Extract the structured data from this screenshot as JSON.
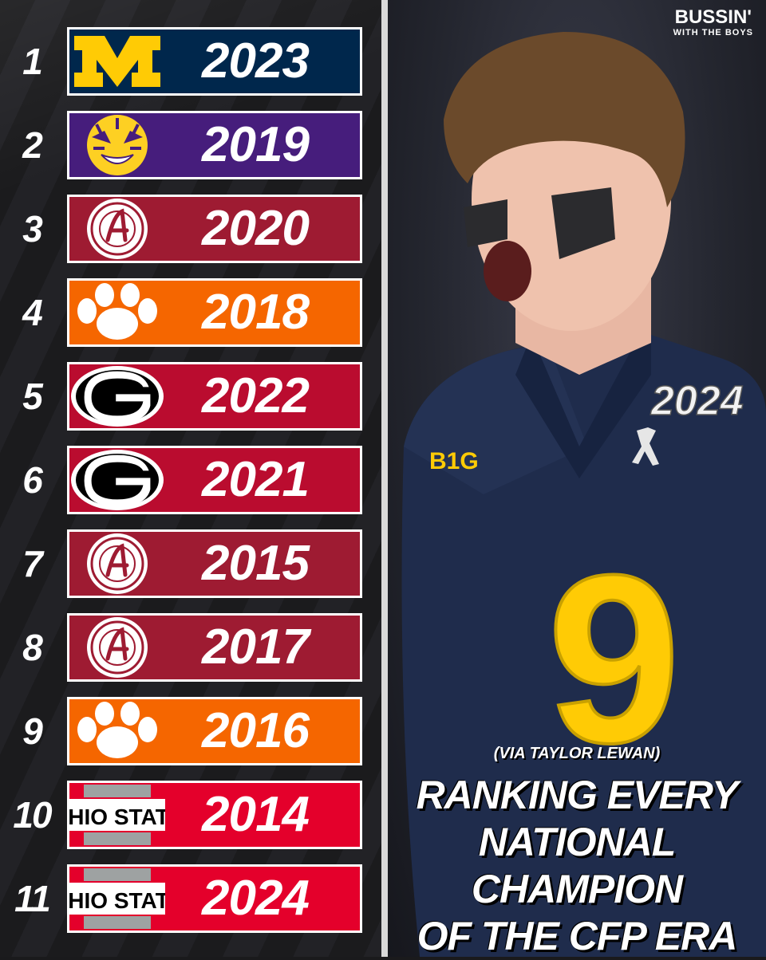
{
  "brand": {
    "line1": "BUSSIN'",
    "line2": "WITH THE BOYS"
  },
  "credit": "(VIA TAYLOR LEWAN)",
  "headline": {
    "line1": "RANKING EVERY",
    "line2": "NATIONAL CHAMPION",
    "line3": "OF THE CFP ERA"
  },
  "photo": {
    "jersey_number": "9",
    "patch": "2024",
    "chest_logo": "B1G"
  },
  "rankings": [
    {
      "rank": "1",
      "year": "2023",
      "team_logo": "michigan-block-m",
      "color": "#00274c"
    },
    {
      "rank": "2",
      "year": "2019",
      "team_logo": "lsu-tiger",
      "color": "#461d7c"
    },
    {
      "rank": "3",
      "year": "2020",
      "team_logo": "alabama-script-a",
      "color": "#9e1b32"
    },
    {
      "rank": "4",
      "year": "2018",
      "team_logo": "clemson-paw",
      "color": "#f56600"
    },
    {
      "rank": "5",
      "year": "2022",
      "team_logo": "georgia-g",
      "color": "#ba0c2f"
    },
    {
      "rank": "6",
      "year": "2021",
      "team_logo": "georgia-g",
      "color": "#ba0c2f"
    },
    {
      "rank": "7",
      "year": "2015",
      "team_logo": "alabama-script-a",
      "color": "#9e1b32"
    },
    {
      "rank": "8",
      "year": "2017",
      "team_logo": "alabama-script-a",
      "color": "#9e1b32"
    },
    {
      "rank": "9",
      "year": "2016",
      "team_logo": "clemson-paw",
      "color": "#f56600"
    },
    {
      "rank": "10",
      "year": "2014",
      "team_logo": "ohio-state-wordmark",
      "color": "#e4002b"
    },
    {
      "rank": "11",
      "year": "2024",
      "team_logo": "ohio-state-wordmark",
      "color": "#e4002b"
    }
  ]
}
